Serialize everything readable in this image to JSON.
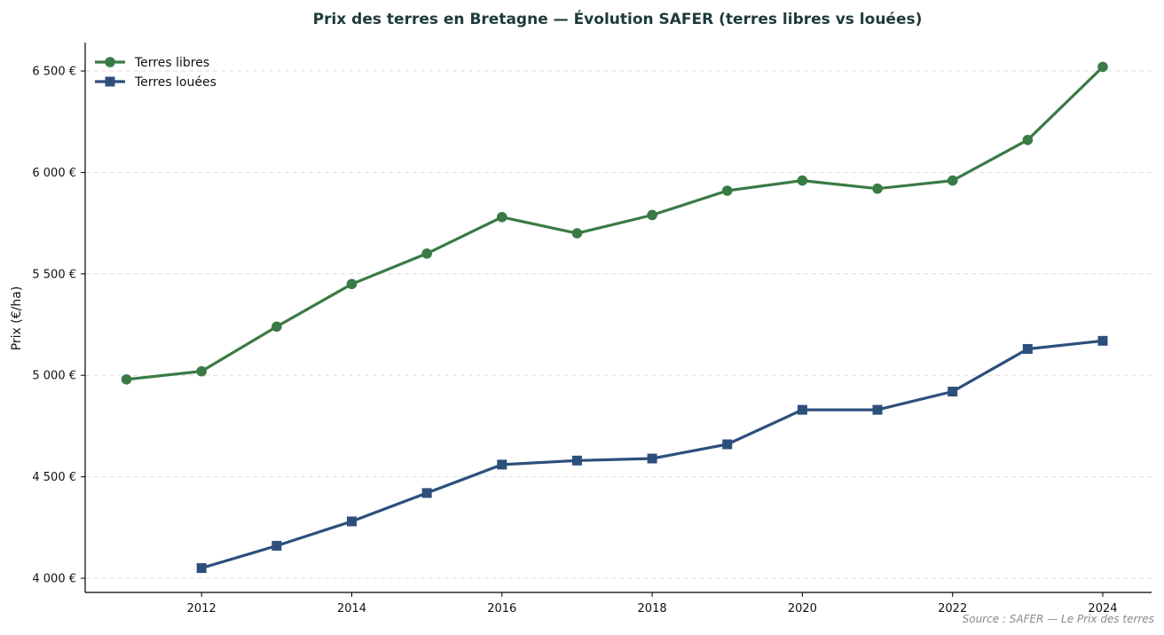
{
  "chart_data": {
    "type": "line",
    "title": "Prix des terres en Bretagne — Évolution SAFER (terres libres vs louées)",
    "xlabel": "",
    "ylabel": "Prix (€/ha)",
    "xlim": [
      2010.45,
      2024.65
    ],
    "ylim": [
      3930,
      6640
    ],
    "x_ticks": [
      2012,
      2014,
      2016,
      2018,
      2020,
      2022,
      2024
    ],
    "y_ticks": [
      4000,
      4500,
      5000,
      5500,
      6000,
      6500
    ],
    "y_tick_labels": [
      "4 000 €",
      "4 500 €",
      "5 000 €",
      "5 500 €",
      "6 000 €",
      "6 500 €"
    ],
    "grid": "horizontal dashed",
    "legend_position": "top-left",
    "series": [
      {
        "name": "Terres libres",
        "color": "#3a7a45",
        "marker": "circle",
        "x": [
          2011,
          2012,
          2013,
          2014,
          2015,
          2016,
          2017,
          2018,
          2019,
          2020,
          2021,
          2022,
          2023,
          2024
        ],
        "values": [
          4980,
          5020,
          5240,
          5450,
          5600,
          5780,
          5700,
          5790,
          5910,
          5960,
          5920,
          5960,
          6160,
          6520
        ]
      },
      {
        "name": "Terres louées",
        "color": "#2d4f7c",
        "marker": "square",
        "x": [
          2012,
          2013,
          2014,
          2015,
          2016,
          2017,
          2018,
          2019,
          2020,
          2021,
          2022,
          2023,
          2024
        ],
        "values": [
          4050,
          4160,
          4280,
          4420,
          4560,
          4580,
          4590,
          4660,
          4830,
          4830,
          4920,
          5130,
          5170
        ]
      }
    ],
    "source_note": "Source : SAFER — Le Prix des terres"
  }
}
